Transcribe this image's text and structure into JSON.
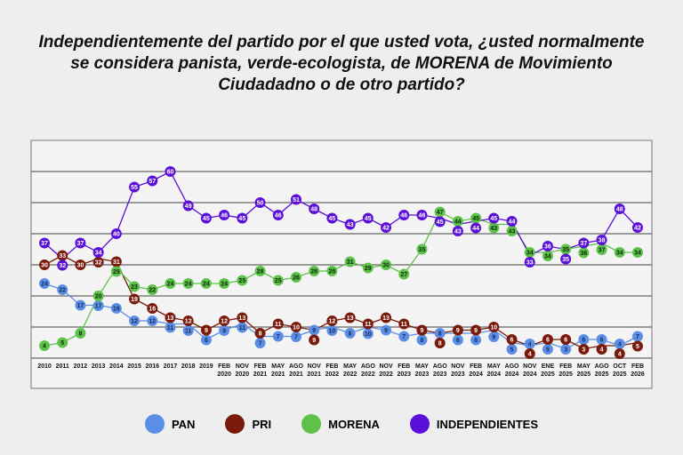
{
  "title": "Independientemente del partido por el que usted vota, ¿usted normalmente se considera panista, verde-ecologista, de MORENA de Movimiento Ciudadadno o de otro partido?",
  "chart_data": {
    "type": "line",
    "title": "Independientemente del partido por el que usted vota, ¿usted normalmente se considera panista, verde-ecologista, de MORENA de Movimiento Ciudadadno o de otro partido?",
    "ylim": [
      0,
      70
    ],
    "grid": true,
    "legend": "bottom",
    "categories": [
      "2010",
      "2011",
      "2012",
      "2013",
      "2014",
      "2015",
      "2016",
      "2017",
      "2018",
      "2019",
      "FEB 2020",
      "NOV 2020",
      "FEB 2021",
      "MAY 2021",
      "AGO 2021",
      "NOV 2021",
      "FEB 2022",
      "MAY 2022",
      "AGO 2022",
      "NOV 2022",
      "FEB 2023",
      "MAY 2023",
      "AGO 2023",
      "NOV 2023",
      "FEB 2024",
      "MAY 2024",
      "AGO 2024",
      "NOV 2024",
      "ENE 2025",
      "FEB 2025",
      "MAY 2025",
      "AGO 2025",
      "OCT 2025",
      "FEB 2026"
    ],
    "series": [
      {
        "name": "PAN",
        "color": "#5b8fe6",
        "text": "#1a2a55",
        "values": [
          24,
          22,
          17,
          17,
          16,
          12,
          12,
          11,
          11,
          6,
          9,
          11,
          7,
          7,
          7,
          9,
          10,
          8,
          10,
          9,
          7,
          8,
          8,
          8,
          8,
          9,
          5,
          4,
          5,
          3,
          6,
          6,
          4,
          7
        ]
      },
      {
        "name": "PRI",
        "color": "#7a1a0a",
        "text": "#ffffff",
        "values": [
          30,
          33,
          30,
          32,
          31,
          19,
          16,
          13,
          12,
          9,
          12,
          13,
          8,
          11,
          10,
          9,
          12,
          13,
          11,
          13,
          11,
          9,
          8,
          9,
          9,
          10,
          6,
          4,
          6,
          6,
          3,
          4,
          4,
          5
        ]
      },
      {
        "name": "MORENA",
        "color": "#5ec24a",
        "text": "#0c2a08",
        "values": [
          4,
          5,
          8,
          20,
          29,
          23,
          22,
          24,
          24,
          24,
          24,
          25,
          28,
          25,
          26,
          28,
          28,
          31,
          29,
          30,
          27,
          35,
          47,
          44,
          45,
          43,
          43,
          34,
          34,
          35,
          36,
          37,
          34,
          34
        ]
      },
      {
        "name": "INDEPENDIENTES",
        "color": "#5a10d8",
        "text": "#ffffff",
        "values": [
          37,
          32,
          37,
          34,
          40,
          55,
          57,
          60,
          49,
          45,
          46,
          45,
          50,
          46,
          51,
          48,
          45,
          43,
          45,
          42,
          46,
          46,
          45,
          43,
          44,
          45,
          44,
          33,
          36,
          35,
          37,
          38,
          48,
          42
        ]
      }
    ]
  }
}
